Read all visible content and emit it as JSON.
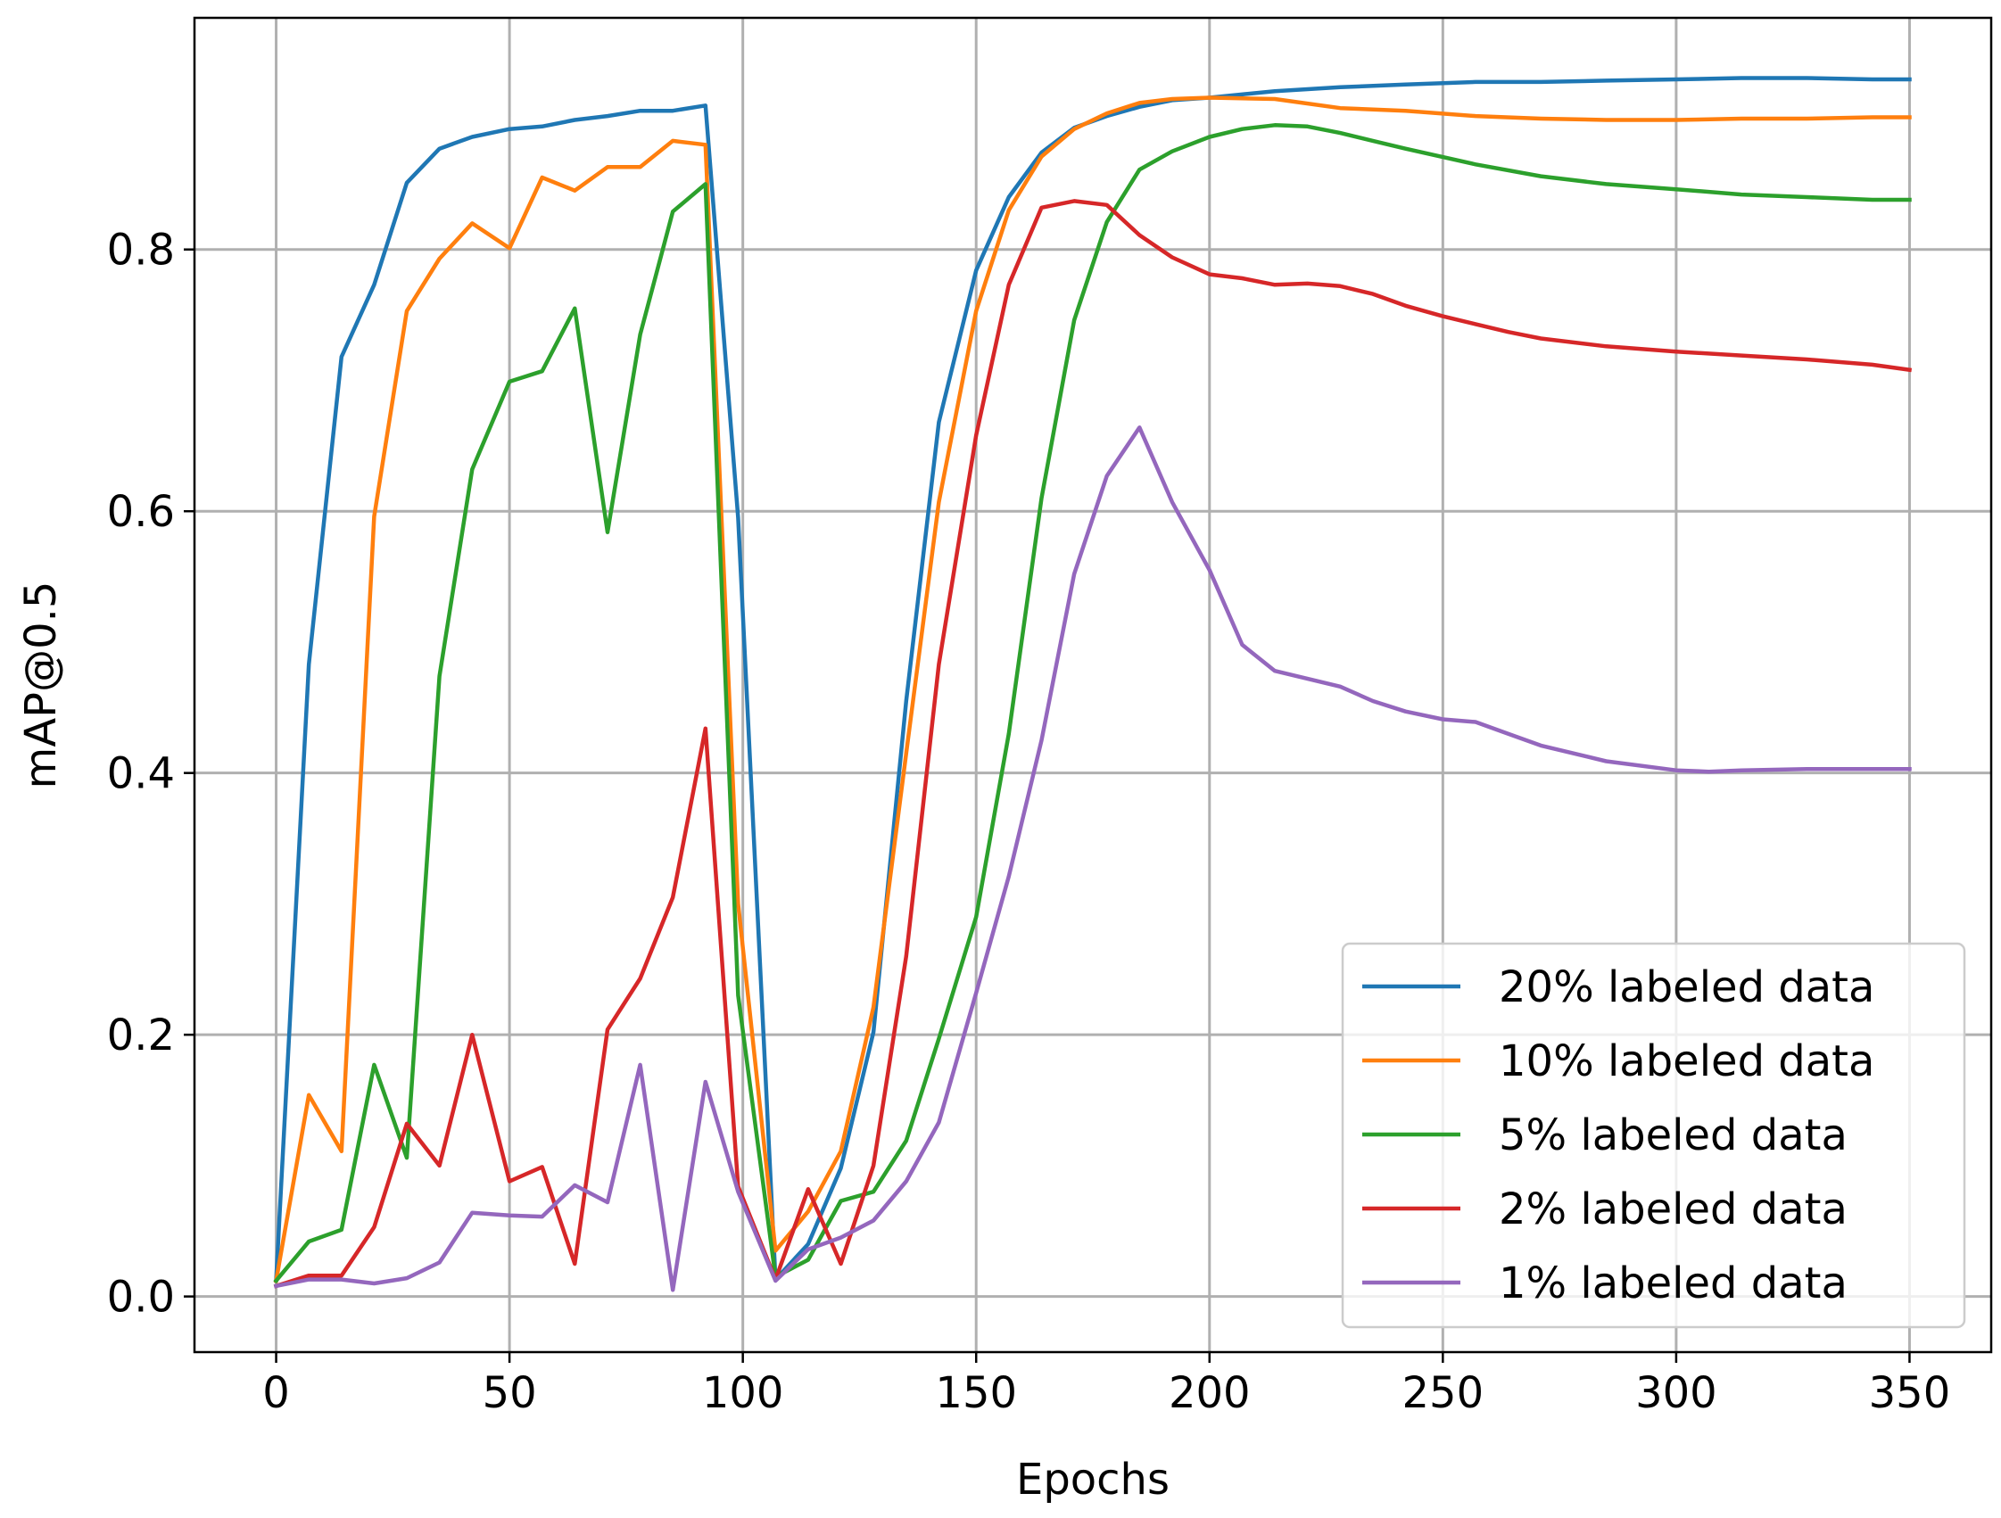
{
  "chart_data": {
    "type": "line",
    "title": "",
    "xlabel": "Epochs",
    "ylabel": "mAP@0.5",
    "xlim": [
      -17.5,
      367.5
    ],
    "ylim": [
      -0.0425,
      0.977
    ],
    "xticks": [
      0,
      50,
      100,
      150,
      200,
      250,
      300,
      350
    ],
    "yticks": [
      0.0,
      0.2,
      0.4,
      0.6,
      0.8
    ],
    "xtick_labels": [
      "0",
      "50",
      "100",
      "150",
      "200",
      "250",
      "300",
      "350"
    ],
    "ytick_labels": [
      "0.0",
      "0.2",
      "0.4",
      "0.6",
      "0.8"
    ],
    "grid": true,
    "legend_position": "lower-right",
    "series": [
      {
        "name": "20% labeled data",
        "color": "#1f77b4",
        "x": [
          0,
          7,
          14,
          21,
          28,
          35,
          42,
          50,
          57,
          64,
          71,
          78,
          85,
          92,
          99,
          107,
          114,
          121,
          128,
          135,
          142,
          150,
          157,
          164,
          171,
          178,
          185,
          192,
          200,
          214,
          228,
          242,
          257,
          271,
          285,
          300,
          314,
          328,
          342,
          350
        ],
        "y": [
          0.012,
          0.483,
          0.718,
          0.773,
          0.851,
          0.877,
          0.886,
          0.892,
          0.894,
          0.899,
          0.902,
          0.906,
          0.906,
          0.91,
          0.595,
          0.013,
          0.04,
          0.098,
          0.202,
          0.455,
          0.668,
          0.784,
          0.84,
          0.874,
          0.893,
          0.902,
          0.909,
          0.914,
          0.916,
          0.921,
          0.924,
          0.926,
          0.928,
          0.928,
          0.929,
          0.93,
          0.931,
          0.931,
          0.93,
          0.93
        ]
      },
      {
        "name": "10% labeled data",
        "color": "#ff7f0e",
        "x": [
          0,
          7,
          14,
          21,
          28,
          35,
          42,
          50,
          57,
          64,
          71,
          78,
          85,
          92,
          99,
          107,
          114,
          121,
          128,
          135,
          142,
          150,
          157,
          164,
          171,
          178,
          185,
          192,
          200,
          214,
          228,
          242,
          257,
          271,
          285,
          300,
          314,
          328,
          342,
          350
        ],
        "y": [
          0.012,
          0.154,
          0.111,
          0.596,
          0.753,
          0.793,
          0.82,
          0.801,
          0.855,
          0.845,
          0.863,
          0.863,
          0.883,
          0.88,
          0.3,
          0.035,
          0.065,
          0.111,
          0.221,
          0.415,
          0.607,
          0.753,
          0.83,
          0.871,
          0.892,
          0.904,
          0.912,
          0.915,
          0.916,
          0.915,
          0.908,
          0.906,
          0.902,
          0.9,
          0.899,
          0.899,
          0.9,
          0.9,
          0.901,
          0.901
        ]
      },
      {
        "name": "5% labeled data",
        "color": "#2ca02c",
        "x": [
          0,
          7,
          14,
          21,
          28,
          35,
          42,
          50,
          57,
          64,
          71,
          78,
          85,
          92,
          99,
          107,
          114,
          121,
          128,
          135,
          142,
          150,
          157,
          164,
          171,
          178,
          185,
          192,
          200,
          207,
          214,
          221,
          228,
          235,
          242,
          257,
          271,
          285,
          300,
          314,
          328,
          342,
          350
        ],
        "y": [
          0.012,
          0.042,
          0.051,
          0.177,
          0.106,
          0.474,
          0.632,
          0.699,
          0.707,
          0.755,
          0.584,
          0.735,
          0.829,
          0.85,
          0.23,
          0.015,
          0.028,
          0.073,
          0.08,
          0.119,
          0.197,
          0.29,
          0.43,
          0.61,
          0.746,
          0.821,
          0.861,
          0.875,
          0.886,
          0.892,
          0.895,
          0.894,
          0.889,
          0.883,
          0.877,
          0.865,
          0.856,
          0.85,
          0.846,
          0.842,
          0.84,
          0.838,
          0.838
        ]
      },
      {
        "name": "2% labeled data",
        "color": "#d62728",
        "x": [
          0,
          7,
          14,
          21,
          28,
          35,
          42,
          50,
          57,
          64,
          71,
          78,
          85,
          92,
          99,
          107,
          114,
          121,
          128,
          135,
          142,
          150,
          157,
          164,
          171,
          178,
          185,
          192,
          200,
          207,
          214,
          221,
          228,
          235,
          242,
          250,
          257,
          264,
          271,
          285,
          300,
          314,
          328,
          342,
          350
        ],
        "y": [
          0.008,
          0.016,
          0.016,
          0.053,
          0.132,
          0.1,
          0.2,
          0.088,
          0.099,
          0.025,
          0.204,
          0.243,
          0.305,
          0.434,
          0.084,
          0.013,
          0.082,
          0.025,
          0.1,
          0.26,
          0.483,
          0.658,
          0.773,
          0.832,
          0.837,
          0.834,
          0.811,
          0.794,
          0.781,
          0.778,
          0.773,
          0.774,
          0.772,
          0.766,
          0.757,
          0.749,
          0.743,
          0.737,
          0.732,
          0.726,
          0.722,
          0.719,
          0.716,
          0.712,
          0.708
        ]
      },
      {
        "name": "1% labeled data",
        "color": "#9467bd",
        "x": [
          0,
          7,
          14,
          21,
          28,
          35,
          42,
          50,
          57,
          64,
          71,
          78,
          85,
          92,
          99,
          107,
          114,
          121,
          128,
          135,
          142,
          150,
          157,
          164,
          171,
          178,
          185,
          192,
          200,
          207,
          214,
          228,
          235,
          242,
          250,
          257,
          264,
          271,
          285,
          300,
          307,
          314,
          328,
          342,
          350
        ],
        "y": [
          0.008,
          0.013,
          0.013,
          0.01,
          0.014,
          0.026,
          0.064,
          0.062,
          0.061,
          0.085,
          0.072,
          0.177,
          0.005,
          0.164,
          0.08,
          0.012,
          0.036,
          0.045,
          0.058,
          0.088,
          0.133,
          0.232,
          0.321,
          0.425,
          0.552,
          0.627,
          0.664,
          0.607,
          0.555,
          0.498,
          0.478,
          0.466,
          0.455,
          0.447,
          0.441,
          0.439,
          0.43,
          0.421,
          0.409,
          0.402,
          0.401,
          0.402,
          0.403,
          0.403,
          0.403
        ]
      }
    ]
  }
}
